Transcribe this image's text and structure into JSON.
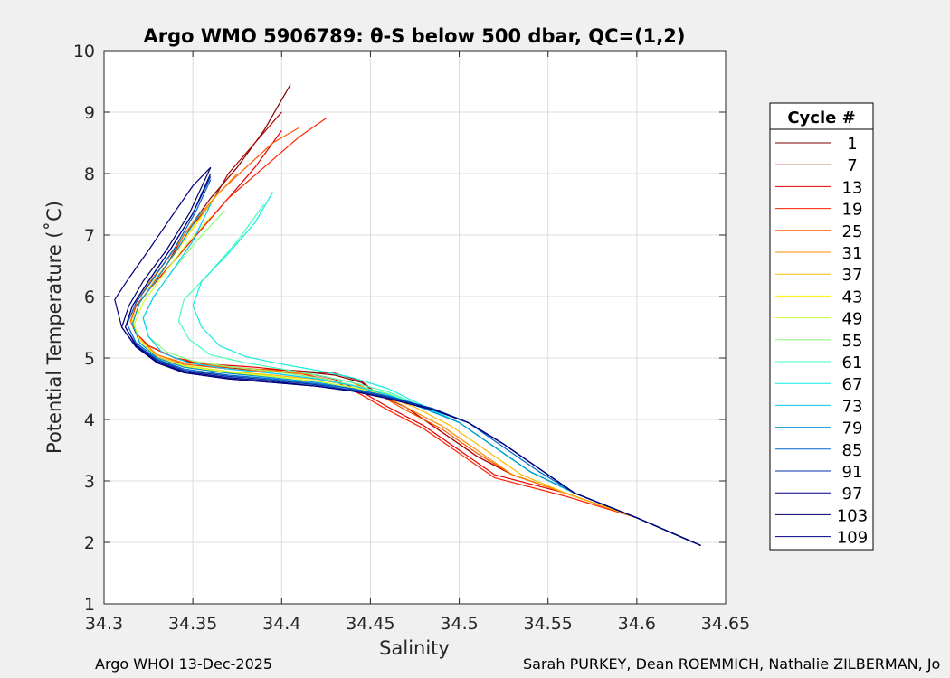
{
  "chart_data": {
    "type": "line",
    "title": "Argo WMO 5906789: θ-S below 500 dbar,  QC=(1,2)",
    "xlabel": "Salinity",
    "ylabel": "Potential Temperature (˚C)",
    "xlim": [
      34.3,
      34.65
    ],
    "ylim": [
      1,
      10
    ],
    "xticks": [
      34.3,
      34.35,
      34.4,
      34.45,
      34.5,
      34.55,
      34.6,
      34.65
    ],
    "xtick_labels": [
      "34.3",
      "34.35",
      "34.4",
      "34.45",
      "34.5",
      "34.55",
      "34.6",
      "34.65"
    ],
    "yticks": [
      1,
      2,
      3,
      4,
      5,
      6,
      7,
      8,
      9,
      10
    ],
    "ytick_labels": [
      "1",
      "2",
      "3",
      "4",
      "5",
      "6",
      "7",
      "8",
      "9",
      "10"
    ],
    "grid": true,
    "legend": {
      "title": "Cycle #",
      "position": "right",
      "entries": [
        {
          "label": "1",
          "color": "#800000"
        },
        {
          "label": "7",
          "color": "#b30000"
        },
        {
          "label": "13",
          "color": "#e60000"
        },
        {
          "label": "19",
          "color": "#ff2200"
        },
        {
          "label": "25",
          "color": "#ff5500"
        },
        {
          "label": "31",
          "color": "#ff8800"
        },
        {
          "label": "37",
          "color": "#ffbb00"
        },
        {
          "label": "43",
          "color": "#ffee00"
        },
        {
          "label": "49",
          "color": "#ccff33"
        },
        {
          "label": "55",
          "color": "#88ff77"
        },
        {
          "label": "61",
          "color": "#44ffbb"
        },
        {
          "label": "67",
          "color": "#11eedd"
        },
        {
          "label": "73",
          "color": "#00ccff"
        },
        {
          "label": "79",
          "color": "#0099cc"
        },
        {
          "label": "85",
          "color": "#0066cc"
        },
        {
          "label": "91",
          "color": "#0033aa"
        },
        {
          "label": "97",
          "color": "#000088"
        },
        {
          "label": "103",
          "color": "#000066"
        },
        {
          "label": "109",
          "color": "#000080"
        }
      ]
    },
    "series": [
      {
        "name": "1",
        "color": "#800000",
        "x": [
          34.636,
          34.6,
          34.56,
          34.53,
          34.51,
          34.49,
          34.47,
          34.455,
          34.445,
          34.43,
          34.405,
          34.38,
          34.355,
          34.34,
          34.325,
          34.318,
          34.315,
          34.318,
          34.325,
          34.335,
          34.345,
          34.36,
          34.375,
          34.39,
          34.405
        ],
        "y": [
          1.95,
          2.4,
          2.8,
          3.1,
          3.4,
          3.8,
          4.2,
          4.4,
          4.6,
          4.72,
          4.8,
          4.82,
          4.88,
          5.0,
          5.2,
          5.4,
          5.6,
          5.85,
          6.1,
          6.5,
          7.0,
          7.6,
          8.1,
          8.7,
          9.45
        ]
      },
      {
        "name": "7",
        "color": "#b30000",
        "x": [
          34.636,
          34.6,
          34.56,
          34.53,
          34.51,
          34.49,
          34.47,
          34.455,
          34.445,
          34.43,
          34.405,
          34.38,
          34.355,
          34.34,
          34.325,
          34.318,
          34.315,
          34.318,
          34.325,
          34.335,
          34.345,
          34.36,
          34.37,
          34.385,
          34.4
        ],
        "y": [
          1.95,
          2.4,
          2.8,
          3.1,
          3.4,
          3.8,
          4.2,
          4.4,
          4.62,
          4.75,
          4.8,
          4.82,
          4.88,
          5.0,
          5.2,
          5.4,
          5.6,
          5.85,
          6.1,
          6.5,
          7.0,
          7.5,
          8.0,
          8.5,
          9.0
        ]
      },
      {
        "name": "13",
        "color": "#e60000",
        "x": [
          34.636,
          34.6,
          34.56,
          34.52,
          34.5,
          34.48,
          34.46,
          34.445,
          34.43,
          34.41,
          34.385,
          34.36,
          34.34,
          34.325,
          34.318,
          34.315,
          34.318,
          34.325,
          34.34,
          34.355,
          34.37,
          34.385,
          34.4
        ],
        "y": [
          1.95,
          2.4,
          2.8,
          3.1,
          3.5,
          3.9,
          4.2,
          4.45,
          4.65,
          4.78,
          4.85,
          4.9,
          5.0,
          5.2,
          5.4,
          5.6,
          5.85,
          6.1,
          6.6,
          7.1,
          7.6,
          8.1,
          8.7
        ]
      },
      {
        "name": "19",
        "color": "#ff2200",
        "x": [
          34.636,
          34.6,
          34.56,
          34.52,
          34.5,
          34.48,
          34.46,
          34.445,
          34.43,
          34.41,
          34.385,
          34.36,
          34.34,
          34.325,
          34.318,
          34.315,
          34.318,
          34.325,
          34.34,
          34.355,
          34.37,
          34.39,
          34.41,
          34.425
        ],
        "y": [
          1.95,
          2.4,
          2.75,
          3.05,
          3.45,
          3.85,
          4.15,
          4.4,
          4.62,
          4.75,
          4.82,
          4.88,
          5.0,
          5.2,
          5.4,
          5.6,
          5.85,
          6.1,
          6.6,
          7.1,
          7.6,
          8.1,
          8.6,
          8.9
        ]
      },
      {
        "name": "25",
        "color": "#ff5500",
        "x": [
          34.636,
          34.6,
          34.56,
          34.53,
          34.51,
          34.49,
          34.47,
          34.455,
          34.44,
          34.42,
          34.395,
          34.37,
          34.345,
          34.33,
          34.32,
          34.315,
          34.318,
          34.325,
          34.338,
          34.35,
          34.365,
          34.38,
          34.395,
          34.41
        ],
        "y": [
          1.95,
          2.4,
          2.8,
          3.1,
          3.45,
          3.85,
          4.15,
          4.4,
          4.6,
          4.72,
          4.78,
          4.82,
          4.9,
          5.05,
          5.3,
          5.6,
          5.9,
          6.2,
          6.7,
          7.2,
          7.7,
          8.1,
          8.5,
          8.75
        ]
      },
      {
        "name": "31",
        "color": "#ff8800",
        "x": [
          34.636,
          34.6,
          34.56,
          34.53,
          34.51,
          34.49,
          34.47,
          34.455,
          34.44,
          34.42,
          34.395,
          34.37,
          34.345,
          34.33,
          34.32,
          34.315,
          34.318,
          34.326,
          34.338,
          34.35,
          34.362,
          34.375
        ],
        "y": [
          1.95,
          2.4,
          2.8,
          3.1,
          3.5,
          3.9,
          4.2,
          4.42,
          4.6,
          4.72,
          4.8,
          4.85,
          4.92,
          5.05,
          5.3,
          5.6,
          5.9,
          6.25,
          6.7,
          7.2,
          7.6,
          8.0
        ]
      },
      {
        "name": "37",
        "color": "#ffbb00",
        "x": [
          34.636,
          34.6,
          34.56,
          34.535,
          34.515,
          34.495,
          34.475,
          34.455,
          34.44,
          34.42,
          34.395,
          34.37,
          34.345,
          34.33,
          34.32,
          34.316,
          34.32,
          34.328,
          34.34,
          34.352,
          34.365
        ],
        "y": [
          1.95,
          2.4,
          2.8,
          3.1,
          3.5,
          3.9,
          4.2,
          4.42,
          4.55,
          4.65,
          4.72,
          4.78,
          4.88,
          5.02,
          5.3,
          5.6,
          5.9,
          6.25,
          6.7,
          7.2,
          7.7
        ]
      },
      {
        "name": "43",
        "color": "#ffee00",
        "x": [
          34.636,
          34.6,
          34.565,
          34.54,
          34.52,
          34.5,
          34.48,
          34.46,
          34.44,
          34.42,
          34.395,
          34.37,
          34.345,
          34.33,
          34.32,
          34.316,
          34.32,
          34.33,
          34.342,
          34.355
        ],
        "y": [
          1.95,
          2.4,
          2.8,
          3.15,
          3.55,
          3.95,
          4.2,
          4.4,
          4.52,
          4.62,
          4.7,
          4.76,
          4.86,
          5.0,
          5.3,
          5.6,
          5.9,
          6.3,
          6.8,
          7.3
        ]
      },
      {
        "name": "49",
        "color": "#ccff33",
        "x": [
          34.636,
          34.6,
          34.565,
          34.54,
          34.52,
          34.5,
          34.48,
          34.46,
          34.44,
          34.42,
          34.395,
          34.37,
          34.345,
          34.33,
          34.32,
          34.317,
          34.322,
          34.332,
          34.345,
          34.36
        ],
        "y": [
          1.95,
          2.4,
          2.8,
          3.15,
          3.55,
          3.95,
          4.2,
          4.4,
          4.52,
          4.62,
          4.7,
          4.78,
          4.88,
          5.0,
          5.25,
          5.55,
          5.9,
          6.3,
          6.8,
          7.3
        ]
      },
      {
        "name": "55",
        "color": "#88ff77",
        "x": [
          34.636,
          34.6,
          34.565,
          34.54,
          34.52,
          34.5,
          34.48,
          34.46,
          34.44,
          34.42,
          34.395,
          34.37,
          34.35,
          34.335,
          34.325,
          34.322,
          34.328,
          34.338,
          34.352,
          34.368
        ],
        "y": [
          1.95,
          2.4,
          2.8,
          3.15,
          3.55,
          3.95,
          4.2,
          4.42,
          4.56,
          4.68,
          4.78,
          4.86,
          4.95,
          5.1,
          5.35,
          5.65,
          6.0,
          6.4,
          6.9,
          7.4
        ]
      },
      {
        "name": "61",
        "color": "#44ffbb",
        "x": [
          34.636,
          34.6,
          34.565,
          34.54,
          34.52,
          34.5,
          34.48,
          34.46,
          34.44,
          34.42,
          34.4,
          34.38,
          34.36,
          34.348,
          34.342,
          34.345,
          34.36,
          34.375,
          34.39
        ],
        "y": [
          1.95,
          2.4,
          2.8,
          3.15,
          3.55,
          3.95,
          4.2,
          4.45,
          4.6,
          4.72,
          4.82,
          4.92,
          5.05,
          5.3,
          5.6,
          5.95,
          6.4,
          6.9,
          7.5
        ]
      },
      {
        "name": "67",
        "color": "#11eedd",
        "x": [
          34.636,
          34.6,
          34.565,
          34.54,
          34.52,
          34.5,
          34.48,
          34.46,
          34.44,
          34.42,
          34.4,
          34.38,
          34.365,
          34.355,
          34.35,
          34.355,
          34.37,
          34.385,
          34.395
        ],
        "y": [
          1.95,
          2.4,
          2.8,
          3.15,
          3.55,
          3.95,
          4.22,
          4.5,
          4.68,
          4.8,
          4.9,
          5.02,
          5.2,
          5.5,
          5.85,
          6.25,
          6.7,
          7.2,
          7.7
        ]
      },
      {
        "name": "73",
        "color": "#00ccff",
        "x": [
          34.636,
          34.6,
          34.565,
          34.54,
          34.52,
          34.5,
          34.48,
          34.46,
          34.44,
          34.42,
          34.395,
          34.37,
          34.348,
          34.333,
          34.325,
          34.322,
          34.328,
          34.338,
          34.35,
          34.36
        ],
        "y": [
          1.95,
          2.4,
          2.8,
          3.15,
          3.55,
          3.95,
          4.2,
          4.4,
          4.55,
          4.66,
          4.75,
          4.82,
          4.92,
          5.08,
          5.35,
          5.65,
          6.0,
          6.4,
          6.9,
          7.5
        ]
      },
      {
        "name": "79",
        "color": "#0099cc",
        "x": [
          34.636,
          34.6,
          34.565,
          34.54,
          34.52,
          34.5,
          34.48,
          34.46,
          34.44,
          34.42,
          34.395,
          34.37,
          34.345,
          34.33,
          34.32,
          34.316,
          34.32,
          34.33,
          34.342,
          34.355
        ],
        "y": [
          1.95,
          2.4,
          2.8,
          3.15,
          3.55,
          3.95,
          4.18,
          4.38,
          4.5,
          4.6,
          4.68,
          4.75,
          4.85,
          5.0,
          5.25,
          5.55,
          5.9,
          6.3,
          6.8,
          7.4
        ]
      },
      {
        "name": "85",
        "color": "#0066cc",
        "x": [
          34.636,
          34.6,
          34.565,
          34.545,
          34.525,
          34.505,
          34.485,
          34.46,
          34.44,
          34.42,
          34.395,
          34.37,
          34.345,
          34.33,
          34.318,
          34.313,
          34.318,
          34.328,
          34.34,
          34.352,
          34.36
        ],
        "y": [
          1.95,
          2.4,
          2.8,
          3.15,
          3.55,
          3.95,
          4.18,
          4.38,
          4.5,
          4.58,
          4.66,
          4.72,
          4.82,
          4.98,
          5.25,
          5.55,
          5.9,
          6.3,
          6.8,
          7.4,
          7.9
        ]
      },
      {
        "name": "91",
        "color": "#0033aa",
        "x": [
          34.636,
          34.6,
          34.565,
          34.545,
          34.525,
          34.505,
          34.485,
          34.46,
          34.44,
          34.42,
          34.395,
          34.37,
          34.345,
          34.33,
          34.318,
          34.312,
          34.316,
          34.325,
          34.337,
          34.35,
          34.36
        ],
        "y": [
          1.95,
          2.4,
          2.8,
          3.2,
          3.6,
          3.95,
          4.18,
          4.36,
          4.48,
          4.56,
          4.64,
          4.7,
          4.8,
          4.96,
          5.22,
          5.5,
          5.85,
          6.25,
          6.75,
          7.35,
          7.95
        ]
      },
      {
        "name": "97",
        "color": "#000088",
        "x": [
          34.636,
          34.6,
          34.565,
          34.545,
          34.525,
          34.505,
          34.485,
          34.46,
          34.44,
          34.42,
          34.395,
          34.37,
          34.345,
          34.33,
          34.318,
          34.312,
          34.316,
          34.325,
          34.337,
          34.35,
          34.36
        ],
        "y": [
          1.95,
          2.4,
          2.8,
          3.2,
          3.6,
          3.95,
          4.16,
          4.34,
          4.46,
          4.54,
          4.62,
          4.68,
          4.78,
          4.94,
          5.2,
          5.5,
          5.85,
          6.25,
          6.75,
          7.35,
          8.0
        ]
      },
      {
        "name": "103",
        "color": "#000066",
        "x": [
          34.636,
          34.6,
          34.565,
          34.545,
          34.525,
          34.505,
          34.485,
          34.46,
          34.44,
          34.42,
          34.395,
          34.37,
          34.345,
          34.33,
          34.318,
          34.31,
          34.314,
          34.322,
          34.335,
          34.348,
          34.36
        ],
        "y": [
          1.95,
          2.4,
          2.8,
          3.2,
          3.6,
          3.95,
          4.16,
          4.34,
          4.46,
          4.54,
          4.6,
          4.66,
          4.76,
          4.92,
          5.18,
          5.5,
          5.85,
          6.25,
          6.75,
          7.35,
          8.1
        ]
      },
      {
        "name": "109",
        "color": "#000080",
        "x": [
          34.636,
          34.6,
          34.565,
          34.545,
          34.525,
          34.505,
          34.485,
          34.46,
          34.44,
          34.42,
          34.395,
          34.37,
          34.345,
          34.33,
          34.318,
          34.31,
          34.306,
          34.314,
          34.325,
          34.338,
          34.35,
          34.36
        ],
        "y": [
          1.95,
          2.4,
          2.8,
          3.2,
          3.6,
          3.95,
          4.16,
          4.34,
          4.46,
          4.54,
          4.6,
          4.66,
          4.76,
          4.92,
          5.18,
          5.5,
          5.95,
          6.3,
          6.75,
          7.3,
          7.8,
          8.1
        ]
      }
    ]
  },
  "footer": {
    "left": "Argo WHOI 13-Dec-2025",
    "right": "Sarah PURKEY, Dean ROEMMICH, Nathalie ZILBERMAN, Jo"
  }
}
